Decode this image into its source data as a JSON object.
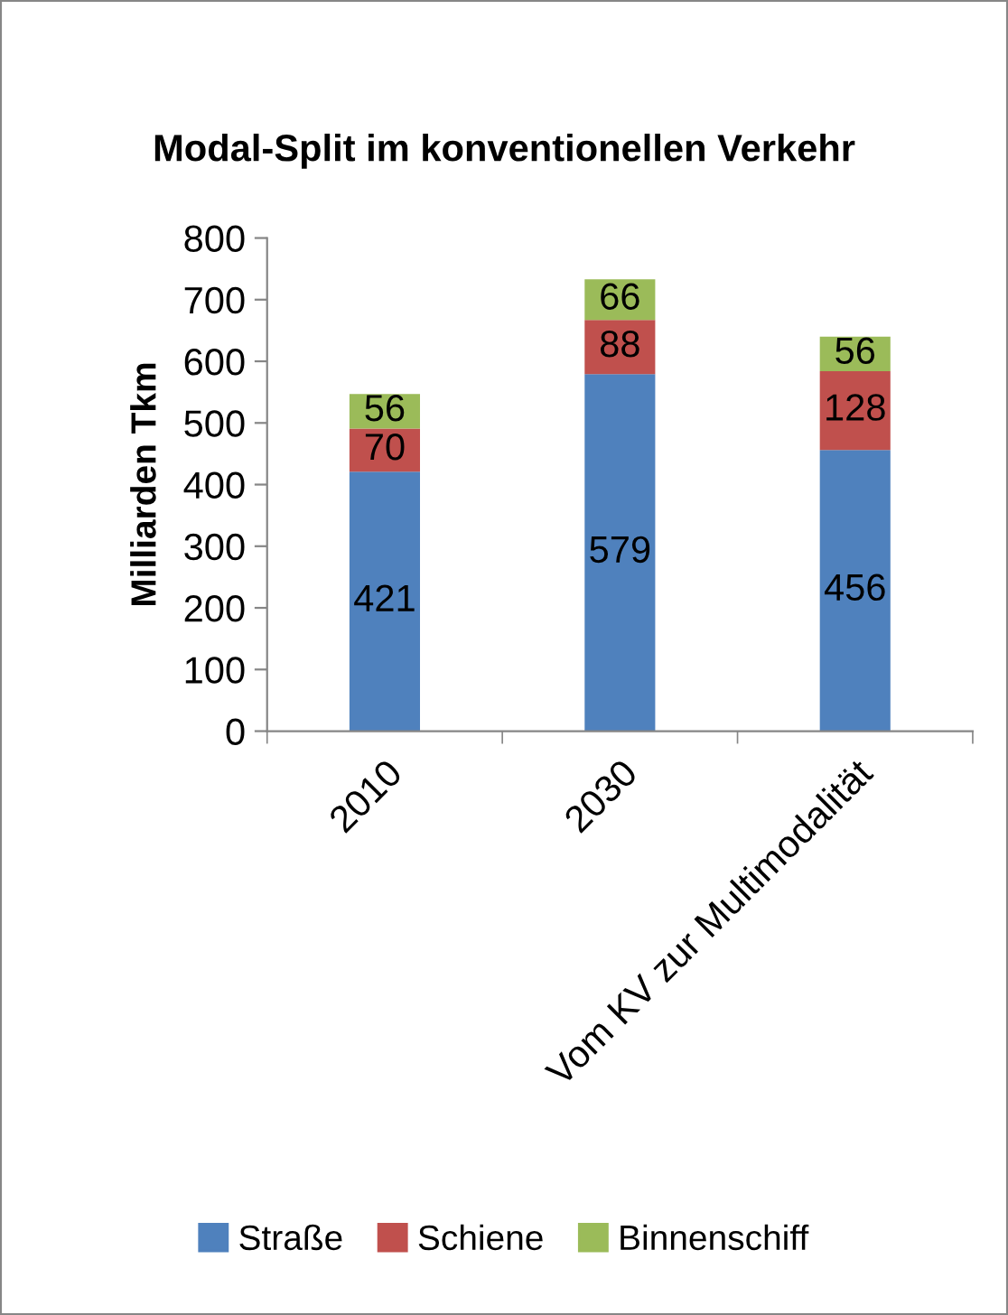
{
  "chart_data": {
    "type": "bar",
    "title": "Modal-Split im konventionellen Verkehr",
    "ylabel": "Milliarden Tkm",
    "categories": [
      "2010",
      "2030",
      "Vom KV zur Multimodalität"
    ],
    "stacked": true,
    "series": [
      {
        "name": "Straße",
        "color": "#4f81bd",
        "values": [
          421,
          579,
          456
        ]
      },
      {
        "name": "Schiene",
        "color": "#c0504d",
        "values": [
          70,
          88,
          128
        ]
      },
      {
        "name": "Binnenschiff",
        "color": "#9bbb59",
        "values": [
          56,
          66,
          56
        ]
      }
    ],
    "ylim": [
      0,
      800
    ],
    "yticks": [
      0,
      100,
      200,
      300,
      400,
      500,
      600,
      700,
      800
    ],
    "data_labels": true,
    "grid": false,
    "legend": "bottom"
  }
}
